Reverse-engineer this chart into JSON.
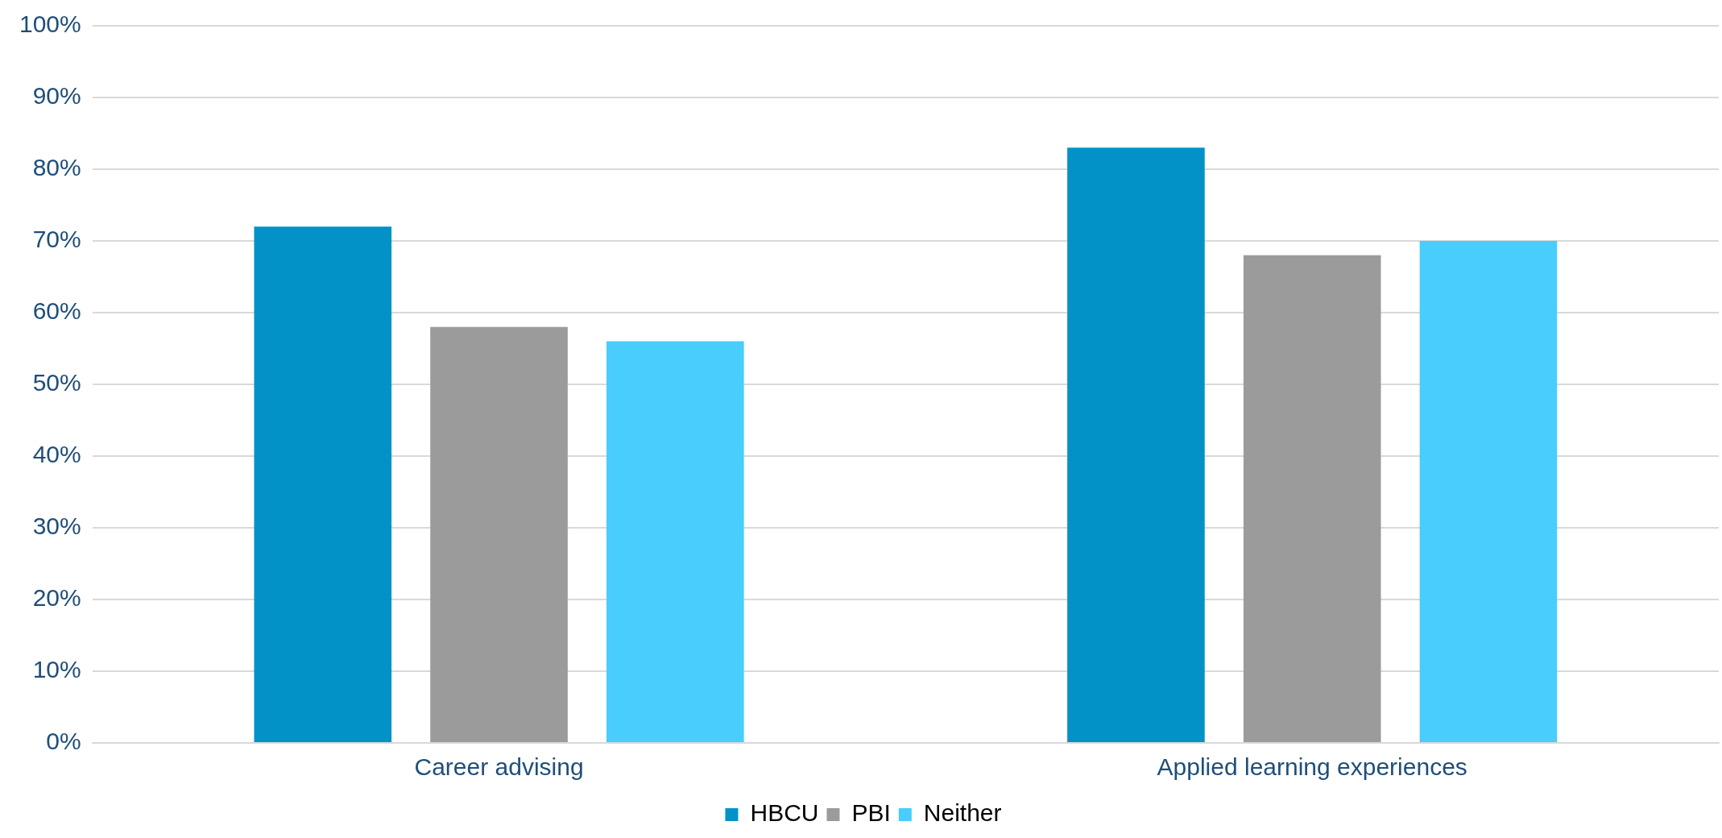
{
  "chart_data": {
    "type": "bar",
    "categories": [
      "Career advising",
      "Applied learning experiences"
    ],
    "series": [
      {
        "name": "HBCU",
        "color": "#0292c8",
        "values": [
          72,
          83
        ]
      },
      {
        "name": "PBI",
        "color": "#9b9b9b",
        "values": [
          58,
          68
        ]
      },
      {
        "name": "Neither",
        "color": "#48cdfd",
        "values": [
          56,
          70
        ]
      }
    ],
    "ylim": [
      0,
      100
    ],
    "yticks": [
      {
        "value": 0,
        "label": "0%"
      },
      {
        "value": 10,
        "label": "10%"
      },
      {
        "value": 20,
        "label": "20%"
      },
      {
        "value": 30,
        "label": "30%"
      },
      {
        "value": 40,
        "label": "40%"
      },
      {
        "value": 50,
        "label": "50%"
      },
      {
        "value": 60,
        "label": "60%"
      },
      {
        "value": 70,
        "label": "70%"
      },
      {
        "value": 80,
        "label": "80%"
      },
      {
        "value": 90,
        "label": "90%"
      },
      {
        "value": 100,
        "label": "100%"
      }
    ],
    "grid": "y",
    "legend": "bottom"
  }
}
